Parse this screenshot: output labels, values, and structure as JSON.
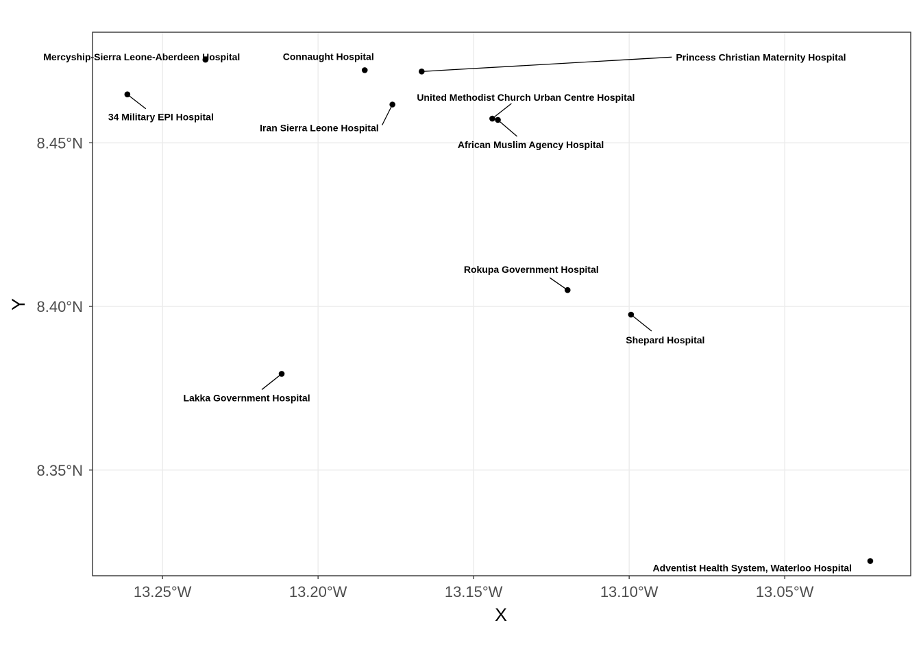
{
  "chart_data": {
    "type": "scatter",
    "title": "",
    "xlabel": "X",
    "ylabel": "Y",
    "xlim": [
      -13.2725,
      -13.0095
    ],
    "ylim": [
      8.3177,
      8.4838
    ],
    "grid": true,
    "x_ticks": [
      {
        "value": -13.25,
        "label": "13.25°W"
      },
      {
        "value": -13.2,
        "label": "13.20°W"
      },
      {
        "value": -13.15,
        "label": "13.15°W"
      },
      {
        "value": -13.1,
        "label": "13.10°W"
      },
      {
        "value": -13.05,
        "label": "13.05°W"
      }
    ],
    "y_ticks": [
      {
        "value": 8.35,
        "label": "8.35°N"
      },
      {
        "value": 8.4,
        "label": "8.40°N"
      },
      {
        "value": 8.45,
        "label": "8.45°N"
      }
    ],
    "points": [
      {
        "name": "Mercyship-Sierra Leone-Aberdeen Hospital",
        "x": -13.2362,
        "y": 8.4754
      },
      {
        "name": "Connaught Hospital",
        "x": -13.185,
        "y": 8.4722
      },
      {
        "name": "Princess Christian Maternity Hospital",
        "x": -13.1667,
        "y": 8.4718
      },
      {
        "name": "34 Military EPI Hospital",
        "x": -13.2613,
        "y": 8.4648
      },
      {
        "name": "United Methodist Church Urban Centre Hospital",
        "x": -13.144,
        "y": 8.4574
      },
      {
        "name": "Iran Sierra Leone Hospital",
        "x": -13.1761,
        "y": 8.4617
      },
      {
        "name": "African Muslim Agency Hospital",
        "x": -13.1422,
        "y": 8.457
      },
      {
        "name": "Rokupa Government Hospital",
        "x": -13.1198,
        "y": 8.405
      },
      {
        "name": "Shepard Hospital",
        "x": -13.0994,
        "y": 8.3975
      },
      {
        "name": "Lakka Government Hospital",
        "x": -13.2117,
        "y": 8.3794
      },
      {
        "name": "Adventist Health System, Waterloo Hospital",
        "x": -13.0225,
        "y": 8.3222
      }
    ]
  }
}
